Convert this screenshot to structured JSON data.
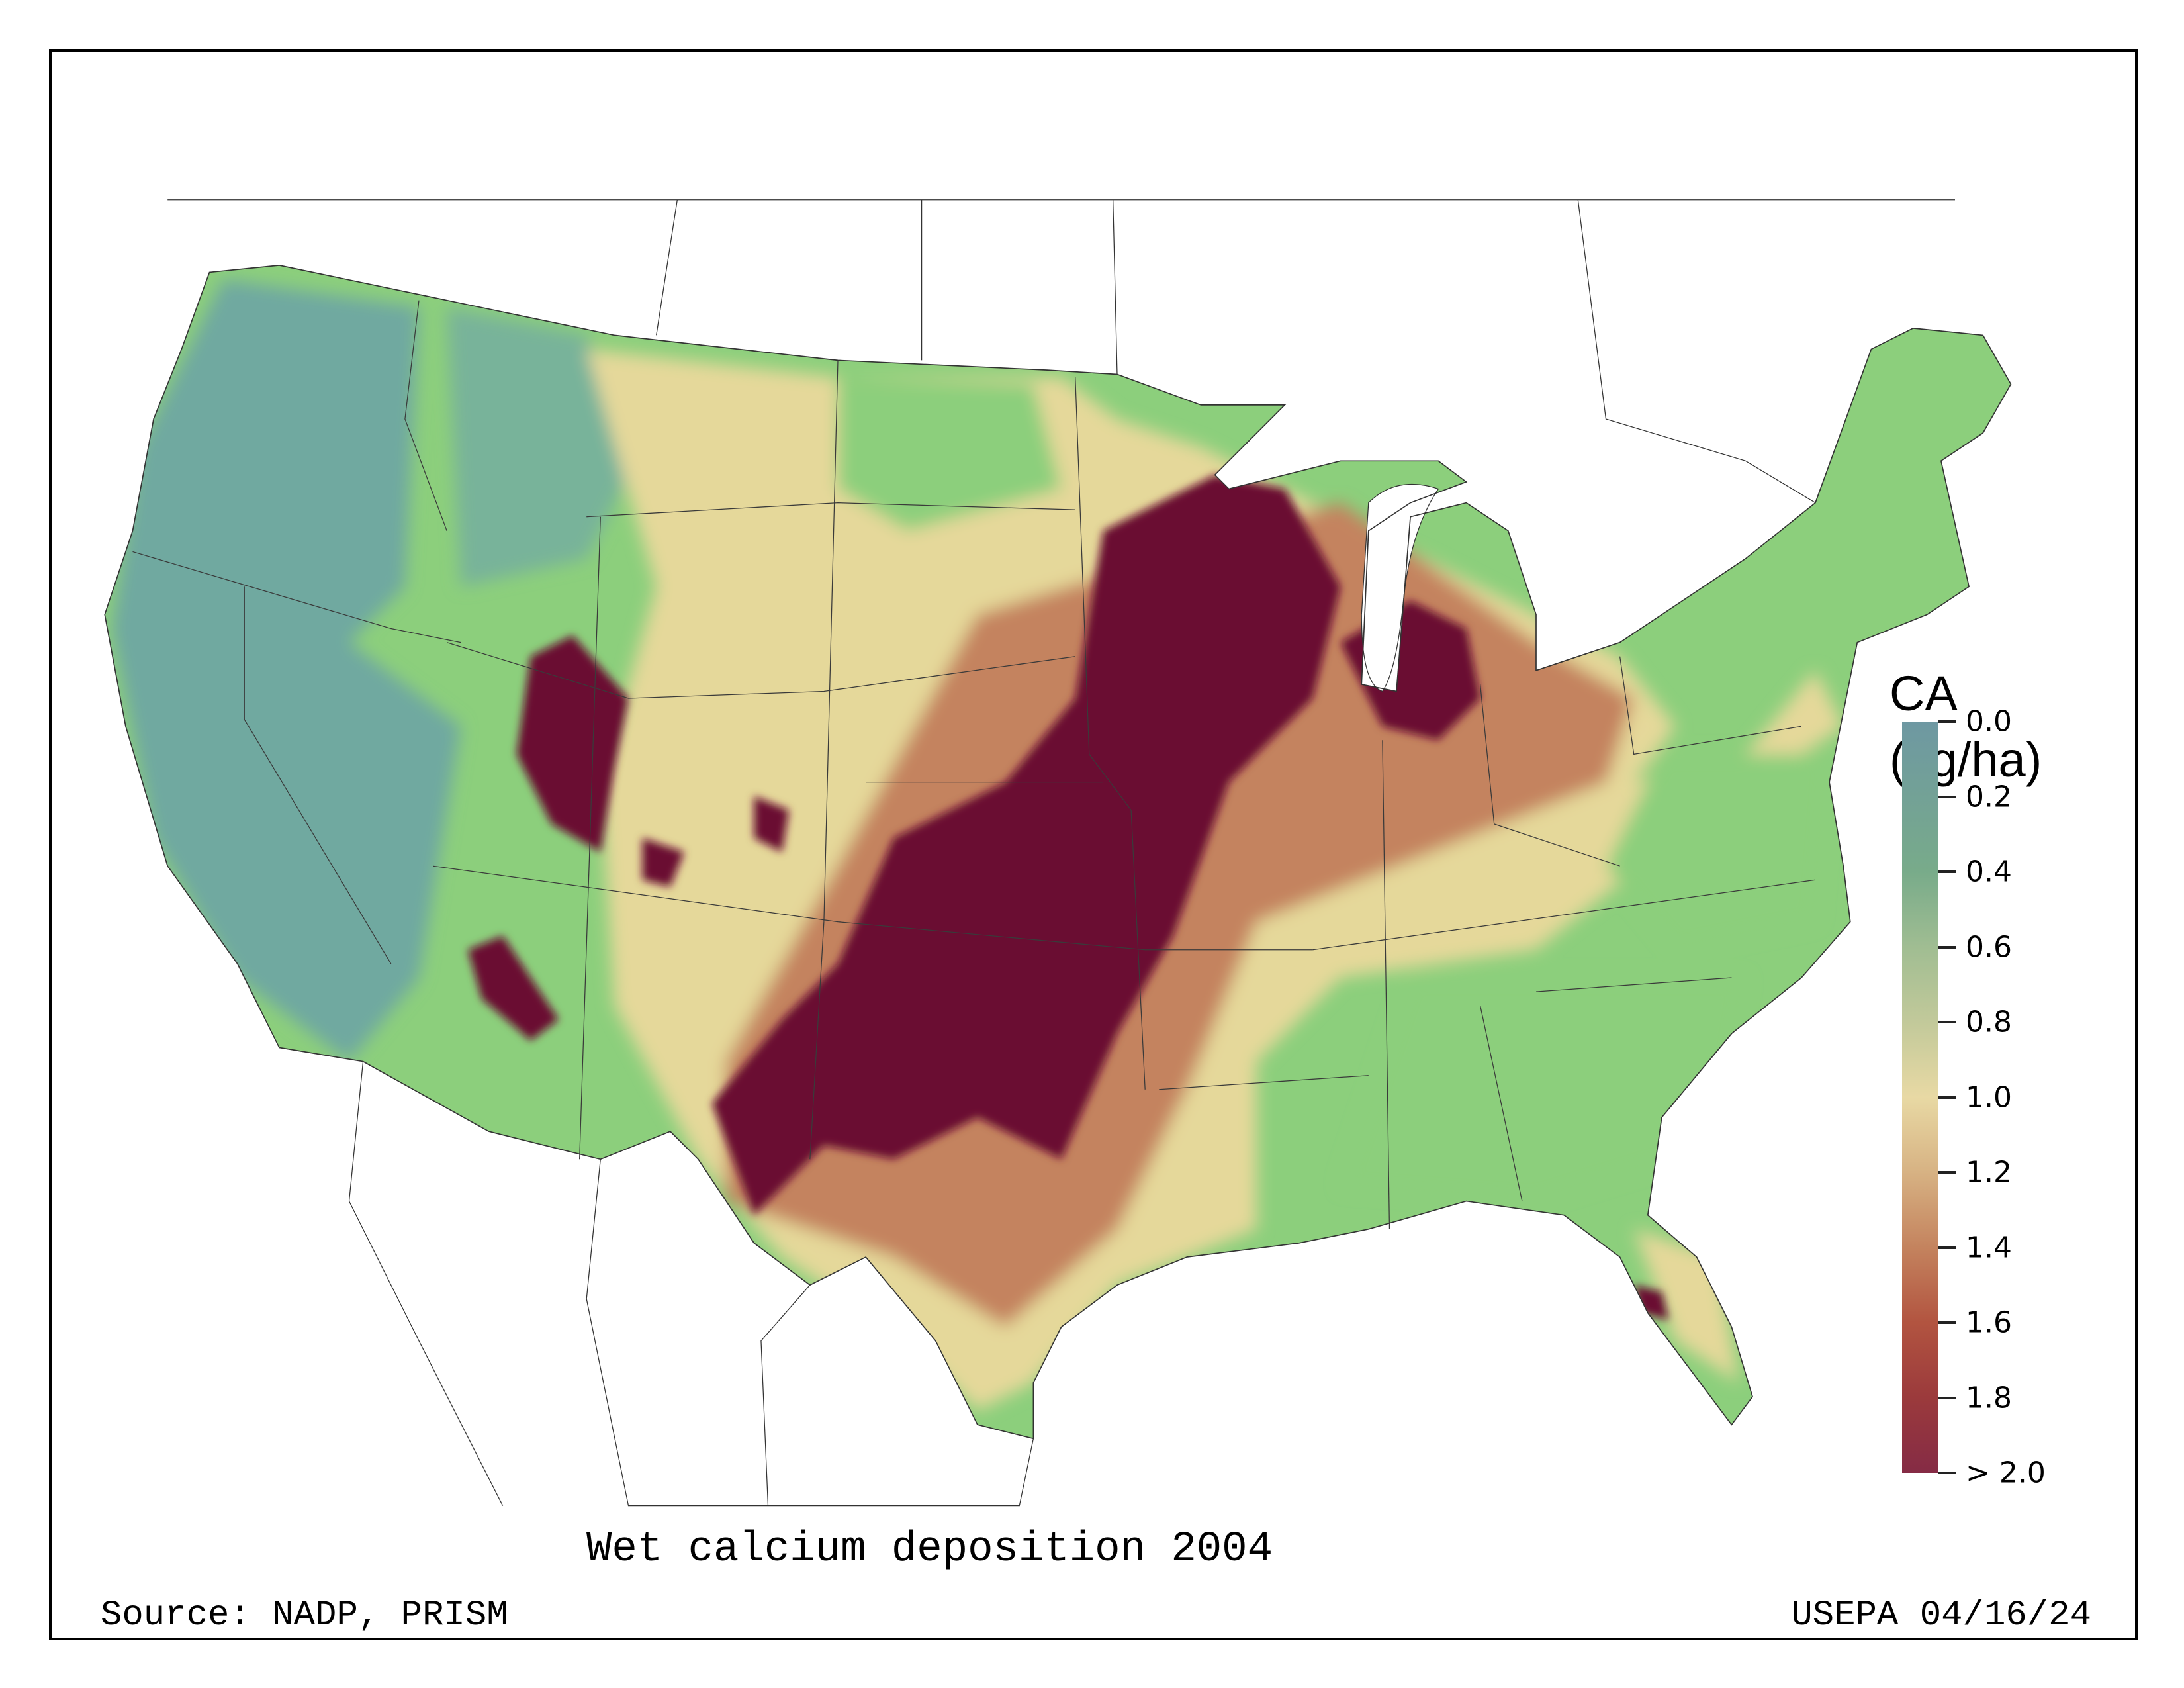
{
  "map": {
    "title": "Wet calcium deposition 2004",
    "source": "Source: NADP, PRISM",
    "credit": "USEPA 04/16/24",
    "colors": {
      "low": "#6e98a2",
      "mid": "#e8d9a4",
      "high": "#6b0a33",
      "green": "#8ccf7c"
    }
  },
  "legend": {
    "title_line1": "CA",
    "title_line2": "(kg/ha)",
    "ticks": [
      "0.0",
      "0.2",
      "0.4",
      "0.6",
      "0.8",
      "1.0",
      "1.2",
      "1.4",
      "1.6",
      "1.8",
      "> 2.0"
    ],
    "range": [
      0.0,
      2.0
    ]
  }
}
